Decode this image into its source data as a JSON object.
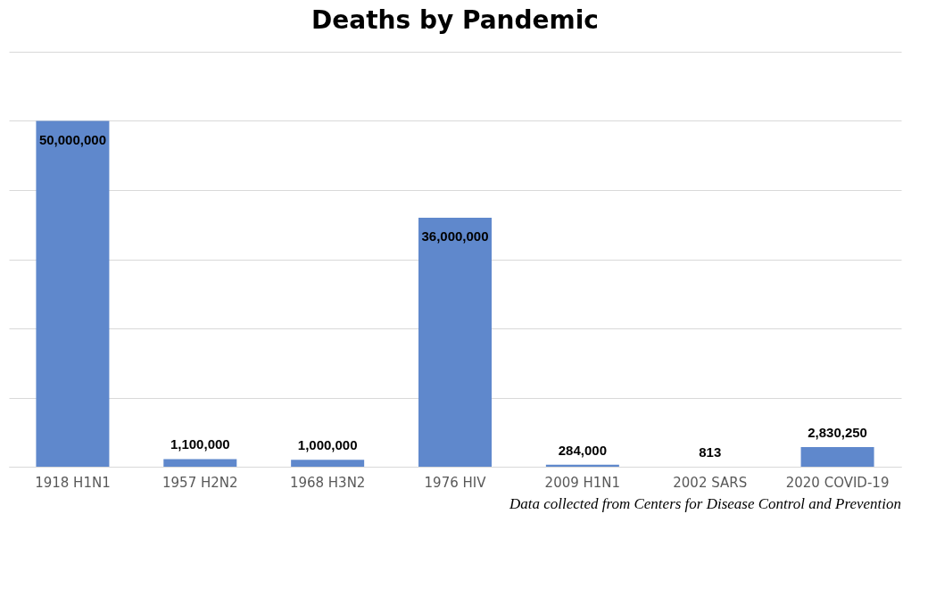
{
  "chart_data": {
    "type": "bar",
    "title": "Deaths by Pandemic",
    "categories": [
      "1918 H1N1",
      "1957 H2N2",
      "1968 H3N2",
      "1976 HIV",
      "2009 H1N1",
      "2002 SARS",
      "2020 COVID-19"
    ],
    "values": [
      50000000,
      1100000,
      1000000,
      36000000,
      284000,
      813,
      2830250
    ],
    "color": "#5f88cc",
    "value_labels": [
      "50,000,000",
      "1,100,000",
      "1,000,000",
      "36,000,000",
      "284,000",
      "813",
      "2,830,250"
    ],
    "ylim": [
      0,
      60000000
    ],
    "yticks": [
      {
        "value": 0,
        "label": null
      },
      {
        "value": 10000000,
        "label": null
      },
      {
        "value": 20000000,
        "label": null
      },
      {
        "value": 30000000,
        "label": null
      },
      {
        "value": 40000000,
        "label": null
      },
      {
        "value": 50000000,
        "label": null
      },
      {
        "value": 60000000,
        "label": null
      }
    ],
    "tick_labels": "x",
    "grid": "y",
    "annotations": [
      "Data collected from Centers for Disease Control and Prevention"
    ]
  }
}
